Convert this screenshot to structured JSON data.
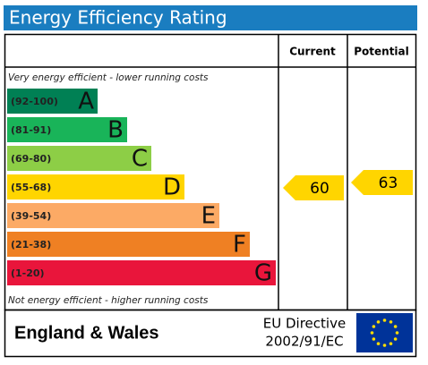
{
  "header": {
    "title": "Energy Efficiency Rating"
  },
  "columns": {
    "current": "Current",
    "potential": "Potential"
  },
  "scale": {
    "top_note": "Very energy efficient - lower running costs",
    "bottom_note": "Not energy efficient - higher running costs",
    "bands": [
      {
        "range": "(92-100)",
        "letter": "A",
        "color": "#008054"
      },
      {
        "range": "(81-91)",
        "letter": "B",
        "color": "#19b459"
      },
      {
        "range": "(69-80)",
        "letter": "C",
        "color": "#8dce46"
      },
      {
        "range": "(55-68)",
        "letter": "D",
        "color": "#ffd500"
      },
      {
        "range": "(39-54)",
        "letter": "E",
        "color": "#fcaa65"
      },
      {
        "range": "(21-38)",
        "letter": "F",
        "color": "#ef8023"
      },
      {
        "range": "(1-20)",
        "letter": "G",
        "color": "#e9153b"
      }
    ]
  },
  "ratings": {
    "current": 60,
    "potential": 63,
    "arrow_color": "#ffd500"
  },
  "footer": {
    "region": "England & Wales",
    "directive_line1": "EU Directive",
    "directive_line2": "2002/91/EC"
  }
}
